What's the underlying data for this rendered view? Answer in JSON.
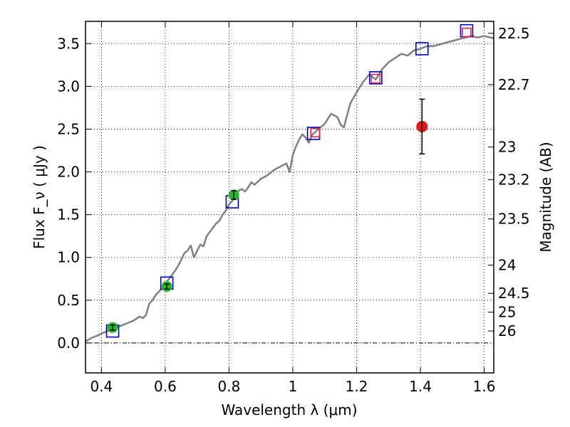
{
  "chart_data": {
    "type": "scatter",
    "title": "",
    "xlabel": "Wavelength  λ (μm)",
    "ylabel": "Flux  F_ν  ( μJy )",
    "ylabel_right": "Magnitude (AB)",
    "xlim": [
      0.35,
      1.63
    ],
    "ylim": [
      -0.35,
      3.76
    ],
    "grid": true,
    "x_ticks": [
      0.4,
      0.6,
      0.8,
      1.0,
      1.2,
      1.4,
      1.6
    ],
    "x_tick_labels": [
      "0.4",
      "0.6",
      "0.8",
      "1",
      "1.2",
      "1.4",
      "1.6"
    ],
    "y_ticks": [
      0.0,
      0.5,
      1.0,
      1.5,
      2.0,
      2.5,
      3.0,
      3.5
    ],
    "y_tick_labels": [
      "0.0",
      "0.5",
      "1.0",
      "1.5",
      "2.0",
      "2.5",
      "3.0",
      "3.5"
    ],
    "right_ticks": [
      {
        "label": "22.5",
        "flux": 3.62
      },
      {
        "label": "22.7",
        "flux": 3.02
      },
      {
        "label": "23",
        "flux": 2.29
      },
      {
        "label": "23.2",
        "flux": 1.91
      },
      {
        "label": "23.5",
        "flux": 1.45
      },
      {
        "label": "24",
        "flux": 0.91
      },
      {
        "label": "24.5",
        "flux": 0.58
      },
      {
        "label": "25",
        "flux": 0.36
      },
      {
        "label": "26",
        "flux": 0.14
      }
    ],
    "series": [
      {
        "name": "model_spectrum",
        "type": "line",
        "color": "#808080",
        "x": [
          0.35,
          0.37,
          0.39,
          0.4,
          0.42,
          0.44,
          0.46,
          0.48,
          0.5,
          0.52,
          0.53,
          0.54,
          0.55,
          0.56,
          0.57,
          0.58,
          0.59,
          0.6,
          0.61,
          0.62,
          0.63,
          0.64,
          0.65,
          0.66,
          0.67,
          0.68,
          0.69,
          0.7,
          0.71,
          0.72,
          0.73,
          0.74,
          0.75,
          0.76,
          0.77,
          0.78,
          0.79,
          0.8,
          0.81,
          0.82,
          0.83,
          0.84,
          0.85,
          0.86,
          0.87,
          0.88,
          0.9,
          0.92,
          0.94,
          0.96,
          0.98,
          0.99,
          1.0,
          1.01,
          1.02,
          1.03,
          1.04,
          1.05,
          1.06,
          1.08,
          1.1,
          1.12,
          1.14,
          1.15,
          1.16,
          1.18,
          1.2,
          1.22,
          1.24,
          1.26,
          1.28,
          1.3,
          1.32,
          1.34,
          1.36,
          1.38,
          1.4,
          1.42,
          1.44,
          1.46,
          1.48,
          1.5,
          1.52,
          1.54,
          1.56,
          1.58,
          1.6,
          1.63
        ],
        "values": [
          0.02,
          0.06,
          0.09,
          0.11,
          0.14,
          0.18,
          0.2,
          0.23,
          0.26,
          0.31,
          0.29,
          0.33,
          0.46,
          0.5,
          0.56,
          0.6,
          0.64,
          0.69,
          0.74,
          0.79,
          0.84,
          0.9,
          0.97,
          1.05,
          1.08,
          1.14,
          1.0,
          1.08,
          1.15,
          1.13,
          1.25,
          1.3,
          1.35,
          1.4,
          1.43,
          1.5,
          1.55,
          1.62,
          1.66,
          1.73,
          1.78,
          1.8,
          1.77,
          1.82,
          1.88,
          1.85,
          1.92,
          1.96,
          2.02,
          2.06,
          2.1,
          2.0,
          2.2,
          2.3,
          2.38,
          2.44,
          2.4,
          2.34,
          2.43,
          2.5,
          2.56,
          2.68,
          2.64,
          2.55,
          2.52,
          2.8,
          2.93,
          3.05,
          3.14,
          3.08,
          3.2,
          3.28,
          3.33,
          3.38,
          3.36,
          3.42,
          3.44,
          3.47,
          3.47,
          3.49,
          3.51,
          3.53,
          3.55,
          3.57,
          3.59,
          3.57,
          3.59,
          3.56
        ]
      },
      {
        "name": "model_photometry",
        "type": "square",
        "color": "#0000cc",
        "x": [
          0.435,
          0.605,
          0.81,
          1.065,
          1.26,
          1.405,
          1.545
        ],
        "values": [
          0.14,
          0.7,
          1.65,
          2.45,
          3.1,
          3.44,
          3.65
        ]
      },
      {
        "name": "observed_red_squares",
        "type": "square",
        "color": "#e8204a",
        "x": [
          1.07,
          1.26,
          1.545
        ],
        "values": [
          2.46,
          3.09,
          3.63
        ]
      },
      {
        "name": "observed_green",
        "type": "point",
        "color": "#22bb22",
        "x": [
          0.435,
          0.605,
          0.815
        ],
        "values": [
          0.18,
          0.66,
          1.73
        ],
        "errors": [
          0.03,
          0.03,
          0.05
        ]
      },
      {
        "name": "observed_red_point",
        "type": "point",
        "color": "#ee1111",
        "x": [
          1.405
        ],
        "values": [
          2.53
        ],
        "errors": [
          0.32
        ]
      }
    ]
  }
}
